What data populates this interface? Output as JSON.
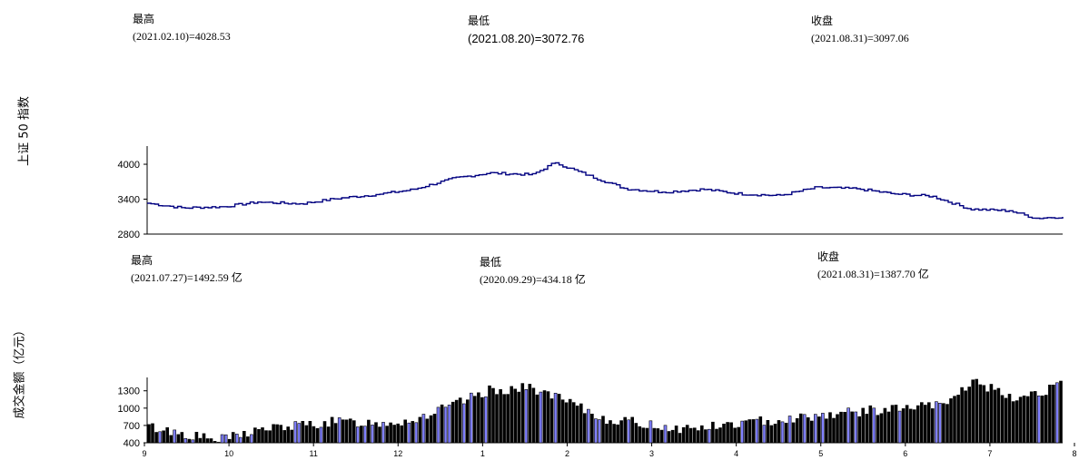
{
  "index_panel": {
    "y_title": "上证 50 指数",
    "stats": {
      "high": {
        "label": "最高",
        "value": "(2021.02.10)=4028.53"
      },
      "low": {
        "label": "最低",
        "value": "(2021.08.20)=3072.76"
      },
      "close": {
        "label": "收盘",
        "value": "(2021.08.31)=3097.06"
      }
    }
  },
  "volume_panel": {
    "y_title": "成交金额（亿元）",
    "stats": {
      "high": {
        "label": "最高",
        "value": "(2021.07.27)=1492.59 亿"
      },
      "low": {
        "label": "最低",
        "value": "(2020.09.29)=434.18 亿"
      },
      "close": {
        "label": "收盘",
        "value": "(2021.08.31)=1387.70 亿"
      }
    }
  },
  "x_tick_labels": [
    "9",
    "10",
    "11",
    "12",
    "1",
    "2",
    "3",
    "4",
    "5",
    "6",
    "7",
    "8"
  ],
  "colors": {
    "line": "#000080",
    "bar": "#000000",
    "bar_highlight": "#8080ff",
    "axis": "#000000"
  },
  "chart_data": [
    {
      "type": "line",
      "name": "上证 50 指数",
      "y_ticks": [
        2800,
        3400,
        4000
      ],
      "ylim": [
        2800,
        4250
      ],
      "x_range": [
        "2020-09-01",
        "2021-08-31"
      ],
      "x": [
        "2020-09-01",
        "2020-09-15",
        "2020-10-01",
        "2020-10-15",
        "2020-11-01",
        "2020-11-15",
        "2020-12-01",
        "2020-12-15",
        "2021-01-01",
        "2021-01-15",
        "2021-02-01",
        "2021-02-10",
        "2021-02-25",
        "2021-03-10",
        "2021-03-25",
        "2021-04-10",
        "2021-04-25",
        "2021-05-10",
        "2021-05-25",
        "2021-06-10",
        "2021-06-25",
        "2021-07-10",
        "2021-07-25",
        "2021-08-10",
        "2021-08-20",
        "2021-08-31"
      ],
      "y": [
        3330,
        3250,
        3270,
        3350,
        3320,
        3410,
        3480,
        3560,
        3760,
        3850,
        3820,
        4028,
        3780,
        3580,
        3520,
        3570,
        3490,
        3460,
        3600,
        3580,
        3490,
        3450,
        3230,
        3200,
        3073,
        3097
      ]
    },
    {
      "type": "bar",
      "name": "成交金额（亿元）",
      "y_ticks": [
        400,
        700,
        1000,
        1300
      ],
      "ylim": [
        400,
        1500
      ],
      "x_range": [
        "2020-09-01",
        "2021-08-31"
      ],
      "x": [
        "2020-09-01",
        "2020-09-15",
        "2020-09-29",
        "2020-10-15",
        "2020-11-01",
        "2020-11-15",
        "2020-12-01",
        "2020-12-15",
        "2021-01-01",
        "2021-01-15",
        "2021-02-01",
        "2021-02-15",
        "2021-03-01",
        "2021-03-15",
        "2021-04-01",
        "2021-04-15",
        "2021-05-01",
        "2021-05-15",
        "2021-06-01",
        "2021-06-15",
        "2021-07-01",
        "2021-07-15",
        "2021-07-27",
        "2021-08-10",
        "2021-08-31"
      ],
      "y": [
        680,
        560,
        434,
        620,
        700,
        760,
        740,
        780,
        1050,
        1300,
        1350,
        1100,
        820,
        740,
        640,
        680,
        760,
        820,
        900,
        950,
        1000,
        1050,
        1493,
        1150,
        1388
      ]
    }
  ]
}
